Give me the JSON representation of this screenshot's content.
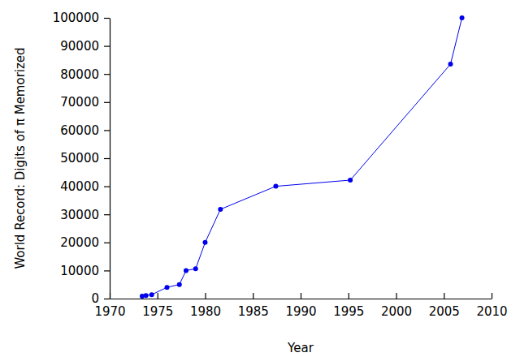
{
  "chart_data": {
    "type": "line",
    "x_label": "Year",
    "y_label": "World Record: Digits of π Memorized",
    "x": [
      1973.4,
      1973.8,
      1974.4,
      1976.0,
      1977.3,
      1978.0,
      1979.0,
      1980.0,
      1981.6,
      1987.4,
      1995.2,
      2005.7,
      2006.9
    ],
    "values": [
      900,
      1100,
      1400,
      4000,
      5000,
      10000,
      10600,
      20000,
      31800,
      40000,
      42200,
      83500,
      100000
    ],
    "color": "#0000ee",
    "marker": "circle",
    "xlim": [
      1970,
      2010
    ],
    "xticks": [
      1970,
      1975,
      1980,
      1985,
      1990,
      1995,
      2000,
      2005,
      2010
    ],
    "ylim": [
      0,
      100000
    ],
    "yticks": [
      0,
      10000,
      20000,
      30000,
      40000,
      50000,
      60000,
      70000,
      80000,
      90000,
      100000
    ],
    "grid": false
  }
}
